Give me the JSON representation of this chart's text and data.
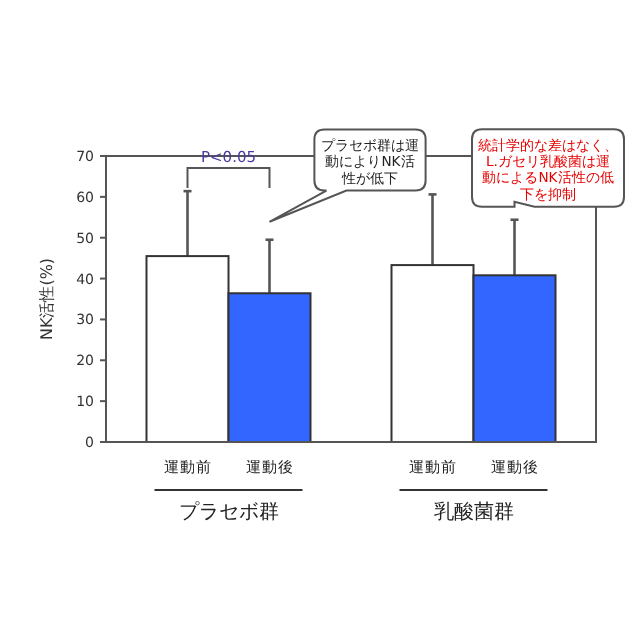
{
  "chart_data": {
    "type": "bar",
    "ylabel": "NK活性(%)",
    "categories": [
      "プラセボ群",
      "乳酸菌群"
    ],
    "series": [
      {
        "name": "運動前",
        "color": "#ffffff",
        "values": [
          45.5,
          43.3
        ],
        "errors": [
          [
            45.5,
            61.4
          ],
          [
            43.3,
            60.6
          ]
        ]
      },
      {
        "name": "運動後",
        "color": "#3366ff",
        "values": [
          36.4,
          40.8
        ],
        "errors": [
          [
            36.4,
            49.5
          ],
          [
            40.8,
            54.4
          ]
        ]
      }
    ],
    "ylim": [
      0,
      70
    ],
    "yticks": [
      0,
      10,
      20,
      30,
      40,
      50,
      60,
      70
    ],
    "grid": false,
    "annotations": [
      "P<0.05",
      "プラセボ群は運動によりNK活性が低下",
      "統計学的な差はなく、L.ガセリ乳酸菌は運動によるNK活性の低下を抑制"
    ]
  }
}
